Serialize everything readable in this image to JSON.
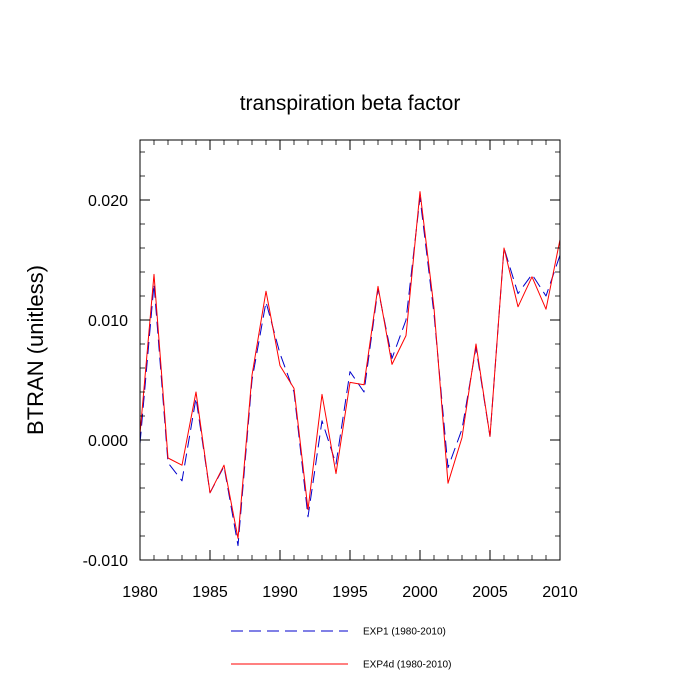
{
  "chart_data": {
    "type": "line",
    "title": "transpiration beta factor",
    "xlabel": "",
    "ylabel": "BTRAN  (unitless)",
    "xlim": [
      1980,
      2010
    ],
    "ylim": [
      -0.01,
      0.025
    ],
    "x_ticks": [
      {
        "value": 1980,
        "label": "1980"
      },
      {
        "value": 1985,
        "label": "1985"
      },
      {
        "value": 1990,
        "label": "1990"
      },
      {
        "value": 1995,
        "label": "1995"
      },
      {
        "value": 2000,
        "label": "2000"
      },
      {
        "value": 2005,
        "label": "2005"
      },
      {
        "value": 2010,
        "label": "2010"
      }
    ],
    "y_ticks": [
      {
        "value": -0.01,
        "label": "-0.010"
      },
      {
        "value": 0.0,
        "label": "0.000"
      },
      {
        "value": 0.01,
        "label": "0.010"
      },
      {
        "value": 0.02,
        "label": "0.020"
      }
    ],
    "grid": false,
    "legend_position": "bottom-center",
    "x": [
      1980,
      1981,
      1982,
      1983,
      1984,
      1985,
      1986,
      1987,
      1988,
      1989,
      1990,
      1991,
      1992,
      1993,
      1994,
      1995,
      1996,
      1997,
      1998,
      1999,
      2000,
      2001,
      2002,
      2003,
      2004,
      2005,
      2006,
      2007,
      2008,
      2009,
      2010
    ],
    "series": [
      {
        "name": "EXP1 (1980-2010)",
        "color": "#0000cc",
        "style": "dashed",
        "values": [
          -0.0003,
          0.013,
          -0.0019,
          -0.0034,
          0.0035,
          -0.0044,
          -0.0022,
          -0.0088,
          0.005,
          0.0115,
          0.0072,
          0.004,
          -0.0064,
          0.0016,
          -0.002,
          0.0057,
          0.004,
          0.0126,
          0.0068,
          0.01,
          0.0202,
          0.0105,
          -0.0023,
          0.0009,
          0.0077,
          0.0003,
          0.016,
          0.0122,
          0.0138,
          0.012,
          0.0154
        ]
      },
      {
        "name": "EXP4d (1980-2010)",
        "color": "#ff0000",
        "style": "solid",
        "values": [
          0.0005,
          0.0138,
          -0.0015,
          -0.0021,
          0.004,
          -0.0044,
          -0.0021,
          -0.0082,
          0.0054,
          0.0124,
          0.0062,
          0.0043,
          -0.0058,
          0.0038,
          -0.0028,
          0.0048,
          0.0046,
          0.0128,
          0.0063,
          0.0087,
          0.0207,
          0.011,
          -0.0036,
          0.0002,
          0.008,
          0.0003,
          0.016,
          0.0111,
          0.0136,
          0.0109,
          0.0167
        ]
      }
    ]
  }
}
